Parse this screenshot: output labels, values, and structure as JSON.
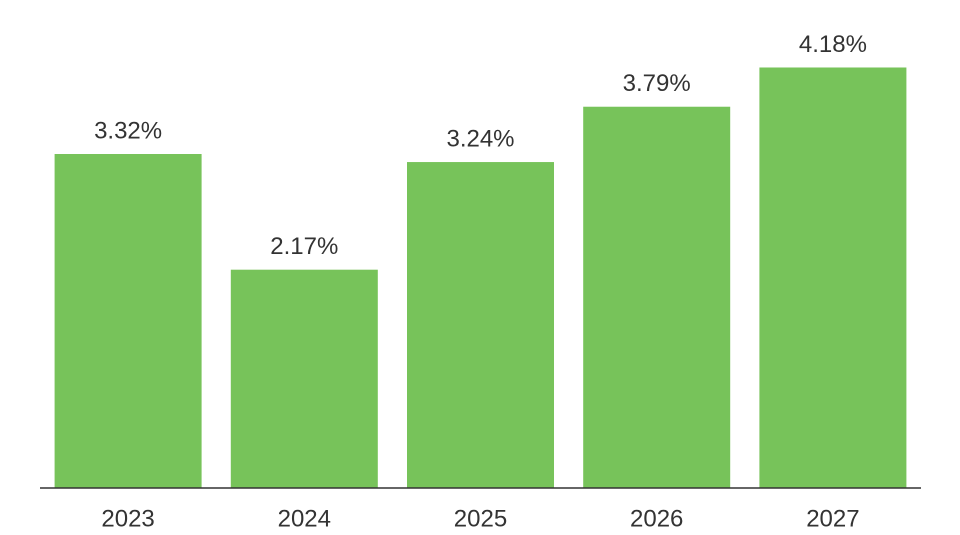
{
  "chart_data": {
    "type": "bar",
    "categories": [
      "2023",
      "2024",
      "2025",
      "2026",
      "2027"
    ],
    "values": [
      3.32,
      2.17,
      3.24,
      3.79,
      4.18
    ],
    "value_labels": [
      "3.32%",
      "2.17%",
      "3.24%",
      "3.79%",
      "4.18%"
    ],
    "color": "#77c35a"
  }
}
